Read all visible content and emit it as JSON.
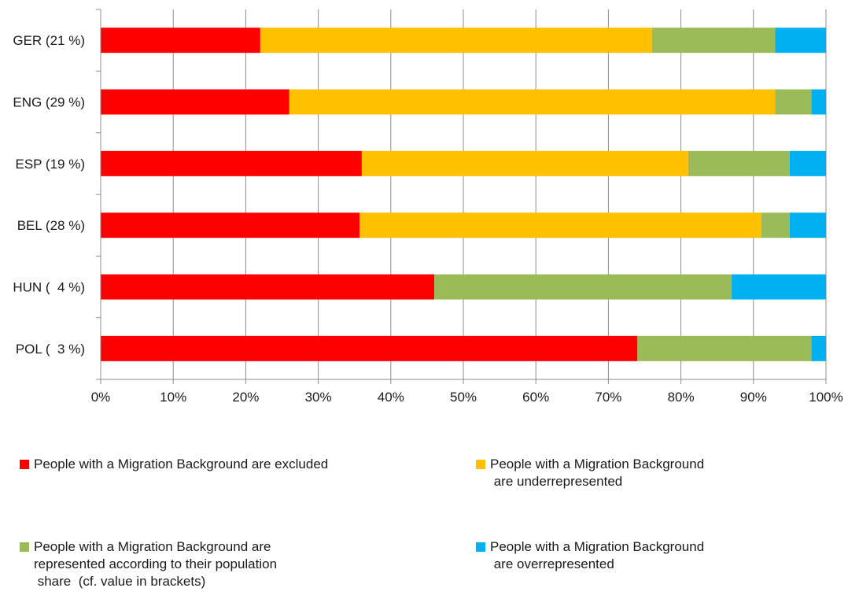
{
  "chart_data": {
    "type": "bar",
    "orientation": "horizontal",
    "stacked": true,
    "normalized": true,
    "categories": [
      "GER (21 %)",
      "ENG (29 %)",
      "ESP (19 %)",
      "BEL (28 %)",
      "HUN (  4 %)",
      "POL (  3 %)"
    ],
    "series": [
      {
        "name": "People with a Migration Background are excluded",
        "color": "#ff0000",
        "values": [
          22,
          26,
          36,
          35.7,
          46,
          74
        ]
      },
      {
        "name": "People with a Migration Background\n are underrepresented",
        "color": "#ffc000",
        "values": [
          54,
          67,
          45,
          55.4,
          0,
          0
        ]
      },
      {
        "name": "People with a Migration Background are\nrepresented according to their population\n share  (cf. value in brackets)",
        "color": "#9bbb59",
        "values": [
          17,
          5,
          14,
          3.9,
          41,
          24
        ]
      },
      {
        "name": "People with a Migration Background\n are overrepresented",
        "color": "#00b0f0",
        "values": [
          7,
          2,
          5,
          5,
          13,
          2
        ]
      }
    ],
    "xlim": [
      0,
      100
    ],
    "xticks": [
      "0%",
      "10%",
      "20%",
      "30%",
      "40%",
      "50%",
      "60%",
      "70%",
      "80%",
      "90%",
      "100%"
    ],
    "xlabel": "",
    "ylabel": "",
    "title": "",
    "grid": "vertical",
    "legend_position": "bottom"
  }
}
